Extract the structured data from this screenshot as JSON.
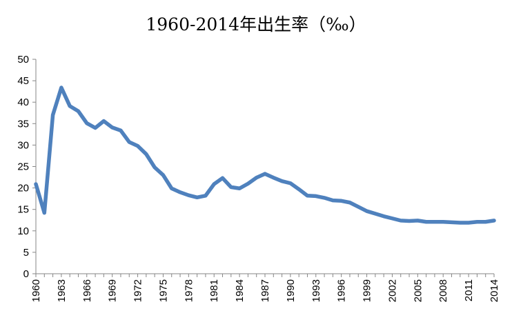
{
  "chart_data": {
    "type": "line",
    "title": "1960-2014年出生率（‰）",
    "xlabel": "",
    "ylabel": "",
    "x": [
      1960,
      1961,
      1962,
      1963,
      1964,
      1965,
      1966,
      1967,
      1968,
      1969,
      1970,
      1971,
      1972,
      1973,
      1974,
      1975,
      1976,
      1977,
      1978,
      1979,
      1980,
      1981,
      1982,
      1983,
      1984,
      1985,
      1986,
      1987,
      1988,
      1989,
      1990,
      1991,
      1992,
      1993,
      1994,
      1995,
      1996,
      1997,
      1998,
      1999,
      2000,
      2001,
      2002,
      2003,
      2004,
      2005,
      2006,
      2007,
      2008,
      2009,
      2010,
      2011,
      2012,
      2013,
      2014
    ],
    "xticks": [
      "1960",
      "1963",
      "1966",
      "1969",
      "1972",
      "1975",
      "1978",
      "1981",
      "1984",
      "1987",
      "1990",
      "1993",
      "1996",
      "1999",
      "2002",
      "2005",
      "2008",
      "2011",
      "2014"
    ],
    "xlim": [
      1960,
      2014
    ],
    "ylim": [
      0,
      50
    ],
    "yticks": [
      "0",
      "5",
      "10",
      "15",
      "20",
      "25",
      "30",
      "35",
      "40",
      "45",
      "50"
    ],
    "grid": false,
    "series": [
      {
        "values": [
          20.9,
          14.2,
          37.0,
          43.4,
          39.1,
          37.9,
          35.1,
          34.0,
          35.6,
          34.1,
          33.4,
          30.7,
          29.8,
          27.9,
          24.8,
          23.0,
          19.9,
          19.0,
          18.3,
          17.8,
          18.2,
          20.9,
          22.3,
          20.2,
          19.9,
          21.0,
          22.4,
          23.3,
          22.4,
          21.6,
          21.1,
          19.7,
          18.2,
          18.1,
          17.7,
          17.1,
          17.0,
          16.6,
          15.6,
          14.6,
          14.0,
          13.4,
          12.9,
          12.4,
          12.3,
          12.4,
          12.1,
          12.1,
          12.1,
          12.0,
          11.9,
          11.9,
          12.1,
          12.1,
          12.4
        ],
        "color": "#4f81bd"
      }
    ],
    "colors": {
      "axis": "#868686",
      "line": "#4f81bd"
    }
  }
}
